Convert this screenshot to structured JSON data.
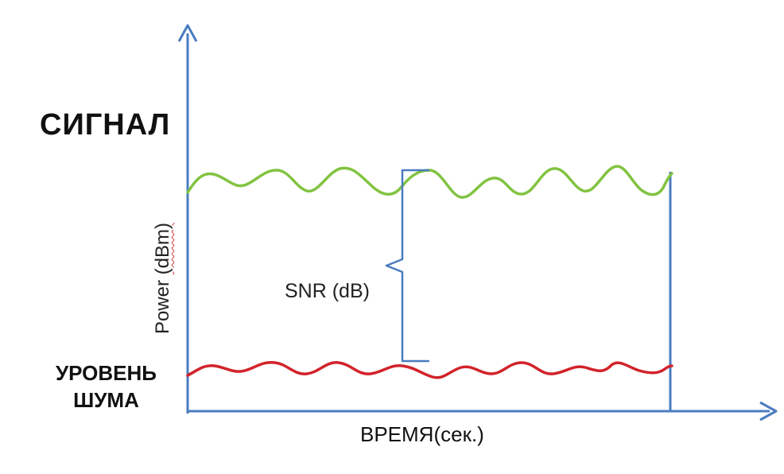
{
  "labels": {
    "signal": "СИГНАЛ",
    "noise_line1": "УРОВЕНЬ",
    "noise_line2": "ШУМА",
    "snr": "SNR (dB)",
    "x_axis": "ВРЕМЯ(сек.)",
    "y_axis_text": "Power ",
    "y_axis_unit": "(dBm)"
  },
  "colors": {
    "axis": "#4a7cc0",
    "signal_line": "#82c341",
    "noise_line": "#d2232a",
    "bracket": "#4a7cc0"
  }
}
